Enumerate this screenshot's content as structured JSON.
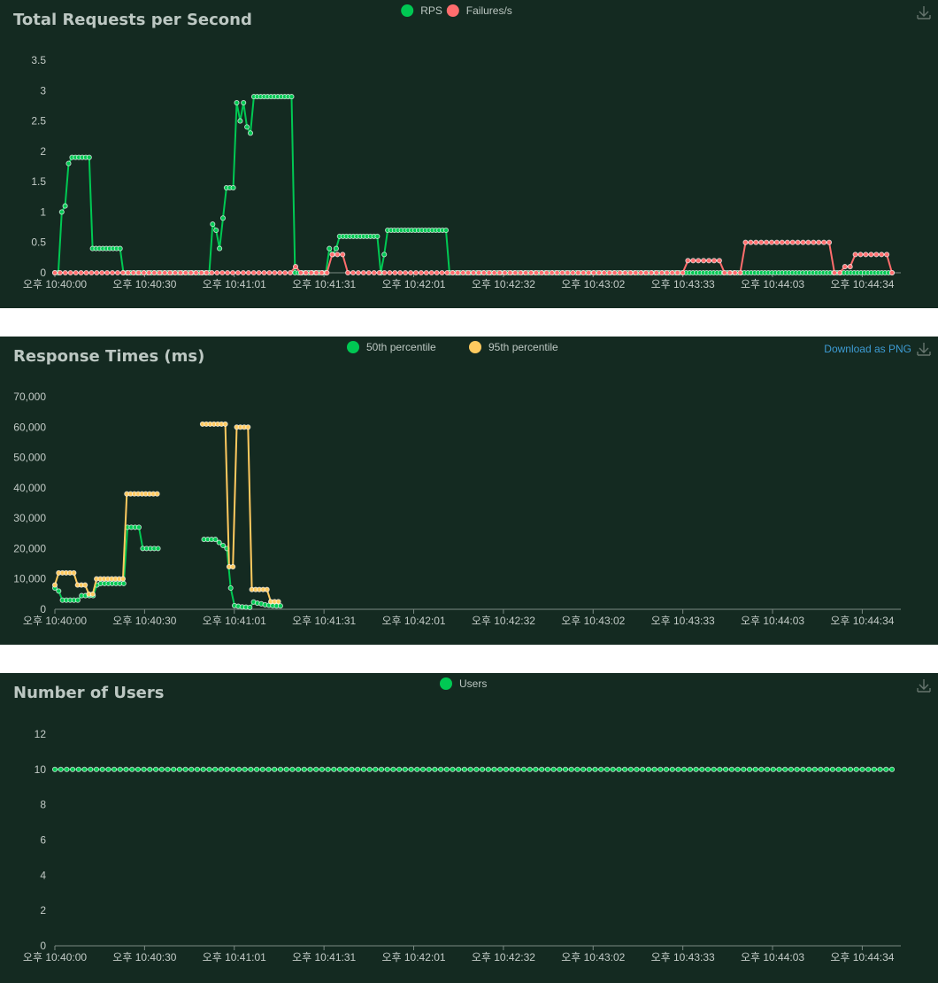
{
  "colors": {
    "green": "#00c853",
    "red": "#ff6d6d",
    "yellow": "#ffca5f",
    "axis_text": "#c3cbc7",
    "panel_bg": "#142a21"
  },
  "icons": {
    "download": "download-icon"
  },
  "chart_data": [
    {
      "type": "line",
      "title": "Total Requests per Second",
      "xlabel": "",
      "ylabel": "",
      "ylim": [
        0,
        3.5
      ],
      "yticks": [
        "0",
        "0.5",
        "1",
        "1.5",
        "2",
        "2.5",
        "3",
        "3.5"
      ],
      "ytick_values": [
        0,
        0.5,
        1,
        1.5,
        2,
        2.5,
        3,
        3.5
      ],
      "xticks": [
        "오후 10:40:00",
        "오후 10:40:30",
        "오후 10:41:01",
        "오후 10:41:31",
        "오후 10:42:01",
        "오후 10:42:32",
        "오후 10:43:02",
        "오후 10:43:33",
        "오후 10:44:03",
        "오후 10:44:34"
      ],
      "legend_position": "top-center",
      "download_label": "",
      "series": [
        {
          "name": "RPS",
          "color": "#00c853",
          "values": [
            0,
            0,
            1,
            1.1,
            1.8,
            1.9,
            1.9,
            1.9,
            1.9,
            1.9,
            1.9,
            0.4,
            0.4,
            0.4,
            0.4,
            0.4,
            0.4,
            0.4,
            0.4,
            0.4,
            0,
            0,
            0,
            0,
            0,
            0,
            0,
            0,
            0,
            0,
            0,
            0,
            0,
            0,
            0,
            0,
            0,
            0,
            0,
            0,
            0,
            0,
            0,
            0,
            0,
            0,
            0.8,
            0.7,
            0.4,
            0.9,
            1.4,
            1.4,
            1.4,
            2.8,
            2.5,
            2.8,
            2.4,
            2.3,
            2.9,
            2.9,
            2.9,
            2.9,
            2.9,
            2.9,
            2.9,
            2.9,
            2.9,
            2.9,
            2.9,
            2.9,
            0,
            0,
            0,
            0,
            0,
            0,
            0,
            0,
            0,
            0,
            0.4,
            0.3,
            0.4,
            0.6,
            0.6,
            0.6,
            0.6,
            0.6,
            0.6,
            0.6,
            0.6,
            0.6,
            0.6,
            0.6,
            0.6,
            0,
            0.3,
            0.7,
            0.7,
            0.7,
            0.7,
            0.7,
            0.7,
            0.7,
            0.7,
            0.7,
            0.7,
            0.7,
            0.7,
            0.7,
            0.7,
            0.7,
            0.7,
            0.7,
            0.7,
            0,
            0,
            0,
            0,
            0,
            0,
            0,
            0,
            0,
            0,
            0,
            0,
            0,
            0,
            0,
            0,
            0,
            0,
            0,
            0,
            0,
            0,
            0,
            0,
            0,
            0,
            0,
            0,
            0,
            0,
            0,
            0,
            0,
            0,
            0,
            0,
            0,
            0,
            0,
            0,
            0,
            0,
            0,
            0,
            0,
            0,
            0,
            0,
            0,
            0,
            0,
            0,
            0,
            0,
            0,
            0,
            0,
            0,
            0,
            0,
            0,
            0,
            0,
            0,
            0,
            0,
            0,
            0,
            0,
            0,
            0,
            0,
            0,
            0,
            0,
            0,
            0,
            0,
            0,
            0,
            0,
            0,
            0,
            0,
            0,
            0,
            0,
            0,
            0,
            0,
            0,
            0,
            0,
            0,
            0,
            0,
            0,
            0,
            0,
            0,
            0,
            0,
            0,
            0,
            0,
            0,
            0,
            0,
            0,
            0,
            0,
            0,
            0,
            0,
            0,
            0,
            0,
            0,
            0,
            0,
            0,
            0,
            0,
            0,
            0,
            0,
            0,
            0,
            0,
            0
          ]
        },
        {
          "name": "Failures/s",
          "color": "#ff6d6d",
          "values": [
            0,
            0,
            0,
            0,
            0,
            0,
            0,
            0,
            0,
            0,
            0,
            0,
            0,
            0,
            0,
            0,
            0,
            0,
            0,
            0,
            0,
            0,
            0,
            0,
            0,
            0,
            0,
            0,
            0,
            0,
            0,
            0,
            0,
            0,
            0,
            0,
            0,
            0,
            0,
            0,
            0,
            0,
            0,
            0,
            0,
            0,
            0.1,
            0,
            0,
            0,
            0,
            0,
            0,
            0.3,
            0.3,
            0.3,
            0,
            0,
            0,
            0,
            0,
            0,
            0,
            0,
            0,
            0,
            0,
            0,
            0,
            0,
            0,
            0,
            0,
            0,
            0,
            0,
            0,
            0,
            0,
            0,
            0,
            0,
            0,
            0,
            0,
            0,
            0,
            0,
            0,
            0,
            0,
            0,
            0,
            0,
            0,
            0,
            0,
            0,
            0,
            0,
            0,
            0,
            0,
            0,
            0,
            0,
            0,
            0,
            0,
            0,
            0,
            0,
            0,
            0,
            0,
            0,
            0,
            0,
            0,
            0,
            0,
            0.2,
            0.2,
            0.2,
            0.2,
            0.2,
            0.2,
            0.2,
            0,
            0,
            0,
            0,
            0.5,
            0.5,
            0.5,
            0.5,
            0.5,
            0.5,
            0.5,
            0.5,
            0.5,
            0.5,
            0.5,
            0.5,
            0.5,
            0.5,
            0.5,
            0.5,
            0.5,
            0,
            0,
            0.1,
            0.1,
            0.3,
            0.3,
            0.3,
            0.3,
            0.3,
            0.3,
            0.3,
            0
          ]
        }
      ]
    },
    {
      "type": "line",
      "title": "Response Times (ms)",
      "xlabel": "",
      "ylabel": "",
      "ylim": [
        0,
        70000
      ],
      "yticks": [
        "0",
        "10,000",
        "20,000",
        "30,000",
        "40,000",
        "50,000",
        "60,000",
        "70,000"
      ],
      "ytick_values": [
        0,
        10000,
        20000,
        30000,
        40000,
        50000,
        60000,
        70000
      ],
      "xticks": [
        "오후 10:40:00",
        "오후 10:40:30",
        "오후 10:41:01",
        "오후 10:41:31",
        "오후 10:42:01",
        "오후 10:42:32",
        "오후 10:43:02",
        "오후 10:43:33",
        "오후 10:44:03",
        "오후 10:44:34"
      ],
      "legend_position": "top-center",
      "download_label": "Download as PNG",
      "series": [
        {
          "name": "50th percentile",
          "color": "#00c853",
          "values": [
            7000,
            6000,
            3000,
            3000,
            3000,
            3000,
            3000,
            4500,
            4500,
            4500,
            4500,
            8000,
            8500,
            8500,
            8500,
            8500,
            8500,
            8500,
            8500,
            27000,
            27000,
            27000,
            27000,
            20000,
            20000,
            20000,
            20000,
            20000,
            null,
            null,
            null,
            null,
            null,
            null,
            null,
            null,
            null,
            null,
            null,
            23000,
            23000,
            23000,
            23000,
            22000,
            21000,
            20000,
            7000,
            1200,
            1000,
            800,
            700,
            600,
            2400,
            2000,
            1800,
            1500,
            1300,
            1200,
            1100,
            1100,
            null,
            null,
            null,
            null,
            null,
            null,
            null,
            null,
            null,
            null,
            null,
            null,
            null,
            null,
            null,
            null,
            null,
            null,
            null,
            null,
            null,
            null,
            null,
            null,
            null,
            null,
            null,
            null,
            null,
            null,
            null,
            null,
            null,
            null,
            null,
            null,
            null,
            null,
            null,
            null,
            null,
            null,
            null,
            null,
            null,
            null,
            null,
            null,
            null,
            null,
            null,
            null,
            null,
            null,
            null,
            null,
            null,
            null,
            null,
            null,
            null,
            null,
            null,
            null,
            null,
            null,
            null,
            null,
            null,
            null,
            null,
            null,
            null,
            null,
            null,
            null,
            null,
            null,
            null,
            null,
            null,
            null,
            null,
            null,
            null,
            null,
            null,
            null,
            null,
            null,
            null,
            null,
            null,
            null,
            null,
            null,
            null,
            null,
            null,
            null,
            null,
            null,
            null,
            null,
            null,
            null,
            null,
            null,
            null,
            null,
            null,
            null,
            null,
            null,
            null,
            null,
            null,
            null,
            null,
            null,
            null,
            null,
            null,
            null,
            null,
            null,
            null,
            null,
            null,
            null,
            null,
            null,
            null,
            null,
            null,
            null,
            null,
            null,
            null,
            null,
            null,
            null,
            null,
            null,
            null,
            null,
            null,
            null,
            null,
            null,
            null,
            null,
            null,
            null,
            null,
            null,
            null,
            null,
            null,
            null
          ]
        },
        {
          "name": "95th percentile",
          "color": "#ffca5f",
          "values": [
            8000,
            12000,
            12000,
            12000,
            12000,
            12000,
            8000,
            8000,
            8000,
            5000,
            5000,
            10000,
            10000,
            10000,
            10000,
            10000,
            10000,
            10000,
            10000,
            38000,
            38000,
            38000,
            38000,
            38000,
            38000,
            38000,
            38000,
            38000,
            null,
            null,
            null,
            null,
            null,
            null,
            null,
            null,
            null,
            null,
            null,
            61000,
            61000,
            61000,
            61000,
            61000,
            61000,
            61000,
            14000,
            14000,
            60000,
            60000,
            60000,
            60000,
            6500,
            6500,
            6500,
            6500,
            6500,
            2500,
            2500,
            2500,
            null,
            null,
            null,
            null,
            null,
            null,
            null,
            null,
            null,
            null,
            null,
            null,
            null,
            null,
            null,
            null,
            null,
            null,
            null,
            null,
            null,
            null,
            null,
            null,
            null,
            null,
            null,
            null,
            null,
            null,
            null,
            null,
            null,
            null,
            null,
            null,
            null,
            null,
            null,
            null,
            null,
            null,
            null,
            null,
            null,
            null,
            null,
            null,
            null,
            null,
            null,
            null,
            null,
            null,
            null,
            null,
            null,
            null,
            null,
            null,
            null,
            null,
            null,
            null,
            null,
            null,
            null,
            null,
            null,
            null,
            null,
            null,
            null,
            null,
            null,
            null,
            null,
            null,
            null,
            null,
            null,
            null,
            null,
            null,
            null,
            null,
            null,
            null,
            null,
            null,
            null,
            null,
            null,
            null,
            null,
            null,
            null,
            null,
            null,
            null,
            null,
            null,
            null,
            null,
            null,
            null,
            null,
            null,
            null,
            null,
            null,
            null,
            null,
            null,
            null,
            null,
            null,
            null,
            null,
            null,
            null,
            null,
            null,
            null,
            null,
            null,
            null,
            null,
            null,
            null,
            null,
            null,
            null,
            null,
            null,
            null,
            null,
            null,
            null,
            null,
            null,
            null,
            null,
            null,
            null,
            null,
            null,
            null,
            null,
            null,
            null,
            null,
            null,
            null,
            null,
            null,
            null,
            null,
            null,
            null,
            null,
            null
          ]
        }
      ]
    },
    {
      "type": "line",
      "title": "Number of Users",
      "xlabel": "",
      "ylabel": "",
      "ylim": [
        0,
        12
      ],
      "yticks": [
        "0",
        "2",
        "4",
        "6",
        "8",
        "10",
        "12"
      ],
      "ytick_values": [
        0,
        2,
        4,
        6,
        8,
        10,
        12
      ],
      "xticks": [
        "오후 10:40:00",
        "오후 10:40:30",
        "오후 10:41:01",
        "오후 10:41:31",
        "오후 10:42:01",
        "오후 10:42:32",
        "오후 10:43:02",
        "오후 10:43:33",
        "오후 10:44:03",
        "오후 10:44:34"
      ],
      "legend_position": "top-center",
      "download_label": "",
      "series": [
        {
          "name": "Users",
          "color": "#00c853",
          "values": [
            10,
            10,
            10,
            10,
            10,
            10,
            10,
            10,
            10,
            10,
            10,
            10,
            10,
            10,
            10,
            10,
            10,
            10,
            10,
            10,
            10,
            10,
            10,
            10,
            10,
            10,
            10,
            10,
            10,
            10,
            10,
            10,
            10,
            10,
            10,
            10,
            10,
            10,
            10,
            10,
            10,
            10,
            10,
            10,
            10,
            10,
            10,
            10,
            10,
            10,
            10,
            10,
            10,
            10,
            10,
            10,
            10,
            10,
            10,
            10,
            10,
            10,
            10,
            10,
            10,
            10,
            10,
            10,
            10,
            10,
            10,
            10,
            10,
            10,
            10,
            10,
            10,
            10,
            10,
            10,
            10,
            10,
            10,
            10,
            10,
            10,
            10,
            10,
            10,
            10,
            10,
            10,
            10,
            10,
            10,
            10,
            10,
            10,
            10,
            10,
            10,
            10,
            10,
            10,
            10,
            10,
            10,
            10,
            10,
            10,
            10,
            10,
            10,
            10,
            10,
            10,
            10,
            10,
            10,
            10,
            10,
            10,
            10,
            10,
            10,
            10,
            10,
            10,
            10,
            10,
            10,
            10,
            10,
            10,
            10,
            10,
            10,
            10,
            10,
            10,
            10,
            10
          ]
        }
      ]
    }
  ]
}
